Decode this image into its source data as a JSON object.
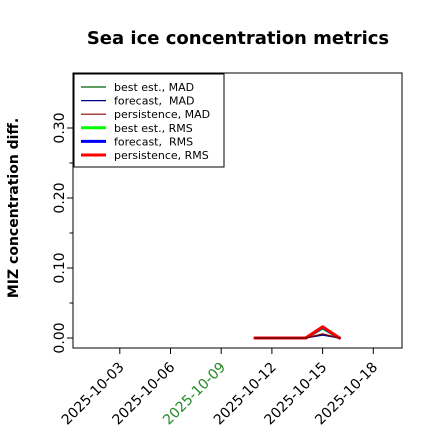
{
  "chart_data": {
    "type": "line",
    "title": "Sea ice concentration metrics",
    "xlabel": "",
    "ylabel": "MIZ concentration diff.",
    "ylim": [
      0,
      0.35
    ],
    "xlim": [
      "2025-10-01",
      "2025-10-19"
    ],
    "y_ticks": [
      "0.00",
      "0.10",
      "0.20",
      "0.30"
    ],
    "y_tick_values": [
      0.0,
      0.1,
      0.2,
      0.3
    ],
    "y_minor_tick_values": [
      0.05,
      0.15,
      0.25
    ],
    "x_ticks": [
      {
        "date": "2025-10-03",
        "label": "2025-10-03",
        "color": "#000000"
      },
      {
        "date": "2025-10-06",
        "label": "2025-10-06",
        "color": "#000000"
      },
      {
        "date": "2025-10-09",
        "label": "2025-10-09",
        "color": "#228b22"
      },
      {
        "date": "2025-10-12",
        "label": "2025-10-12",
        "color": "#000000"
      },
      {
        "date": "2025-10-15",
        "label": "2025-10-15",
        "color": "#000000"
      },
      {
        "date": "2025-10-18",
        "label": "2025-10-18",
        "color": "#000000"
      }
    ],
    "grid": false,
    "legend_position": "top-left",
    "series": [
      {
        "name": "best est., MAD",
        "color": "#006400",
        "style": "thin",
        "x": [
          "2025-10-11",
          "2025-10-14",
          "2025-10-15",
          "2025-10-16"
        ],
        "values": [
          0.0,
          0.0,
          0.005,
          0.0
        ]
      },
      {
        "name": "forecast,  MAD",
        "color": "#00008b",
        "style": "thin",
        "x": [
          "2025-10-11",
          "2025-10-14",
          "2025-10-15",
          "2025-10-16"
        ],
        "values": [
          0.0,
          0.0,
          0.004,
          0.0
        ]
      },
      {
        "name": "persistence, MAD",
        "color": "#8b0000",
        "style": "thin",
        "x": [
          "2025-10-11",
          "2025-10-14",
          "2025-10-15",
          "2025-10-16"
        ],
        "values": [
          0.0,
          0.0,
          0.006,
          0.0
        ]
      },
      {
        "name": "best est., RMS",
        "color": "#00ff00",
        "style": "thick",
        "x": [
          "2025-10-11",
          "2025-10-14",
          "2025-10-15",
          "2025-10-16"
        ],
        "values": [
          0.0,
          0.0,
          0.014,
          0.0
        ]
      },
      {
        "name": "forecast,  RMS",
        "color": "#0000ff",
        "style": "thick",
        "x": [
          "2025-10-11",
          "2025-10-14",
          "2025-10-15",
          "2025-10-16"
        ],
        "values": [
          0.0,
          0.0,
          0.015,
          0.0
        ]
      },
      {
        "name": "persistence, RMS",
        "color": "#ff0000",
        "style": "thick",
        "x": [
          "2025-10-11",
          "2025-10-14",
          "2025-10-15",
          "2025-10-16"
        ],
        "values": [
          0.0,
          0.0,
          0.016,
          0.0
        ]
      }
    ]
  }
}
